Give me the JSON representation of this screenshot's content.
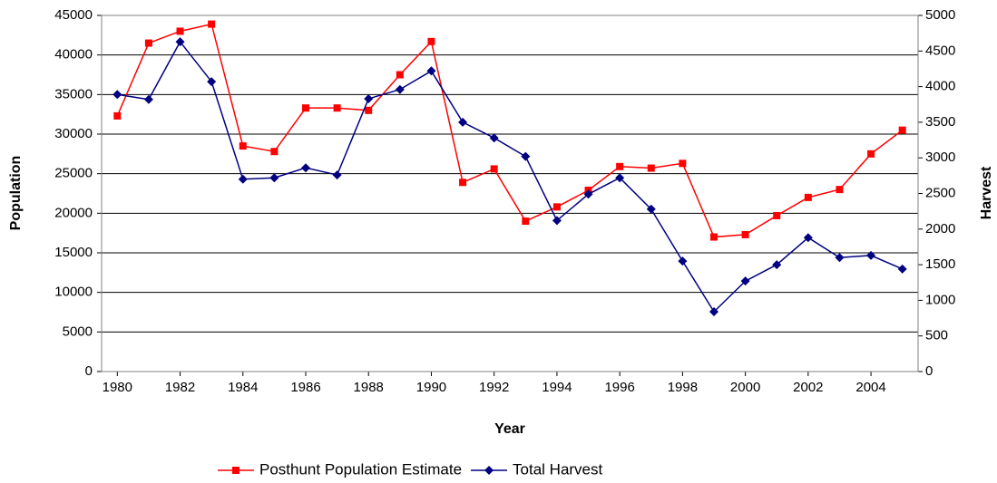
{
  "chart_data": {
    "type": "line",
    "x_label": "Year",
    "y_label": "Population",
    "y2_label": "Harvest",
    "x": [
      1980,
      1981,
      1982,
      1983,
      1984,
      1985,
      1986,
      1987,
      1988,
      1989,
      1990,
      1991,
      1992,
      1993,
      1994,
      1995,
      1996,
      1997,
      1998,
      1999,
      2000,
      2001,
      2002,
      2003,
      2004,
      2005
    ],
    "xlim": [
      1979.5,
      2005.5
    ],
    "xticks": [
      1980,
      1982,
      1984,
      1986,
      1988,
      1990,
      1992,
      1994,
      1996,
      1998,
      2000,
      2002,
      2004
    ],
    "ylim": [
      0,
      45000
    ],
    "yticks": [
      0,
      5000,
      10000,
      15000,
      20000,
      25000,
      30000,
      35000,
      40000,
      45000
    ],
    "y2lim": [
      0,
      5000
    ],
    "y2ticks": [
      0,
      500,
      1000,
      1500,
      2000,
      2500,
      3000,
      3500,
      4000,
      4500,
      5000
    ],
    "grid": true,
    "legend": "bottom",
    "series": [
      {
        "name": "Posthunt Population Estimate",
        "color": "#ff0000",
        "marker": "square",
        "values": [
          32300,
          41500,
          43000,
          43900,
          28500,
          27800,
          33300,
          33300,
          33000,
          37500,
          41700,
          23900,
          25600,
          19000,
          20800,
          22900,
          25900,
          25700,
          26300,
          17000,
          17300,
          19700,
          22000,
          23000,
          27500,
          30500
        ]
      },
      {
        "name": "Total Harvest",
        "color": "#000080",
        "marker": "diamond",
        "axis": "y2",
        "values": [
          3890,
          3820,
          4630,
          4070,
          2700,
          2720,
          2860,
          2760,
          3830,
          3960,
          4220,
          3500,
          3280,
          3020,
          2120,
          2490,
          2720,
          2280,
          1550,
          840,
          1270,
          1500,
          1880,
          1600,
          1630,
          1440
        ]
      }
    ]
  }
}
